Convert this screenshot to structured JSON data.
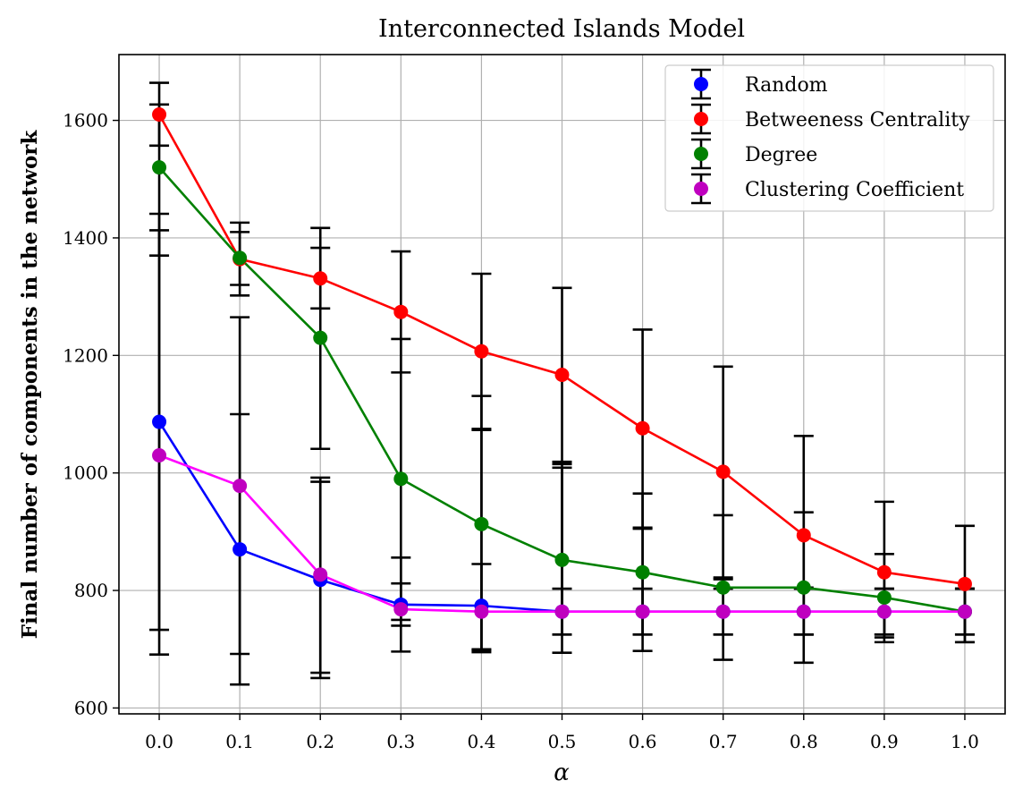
{
  "chart_data": {
    "type": "line",
    "title": "Interconnected Islands Model",
    "xlabel": "α",
    "ylabel": "Final number of components in the network",
    "x": [
      0.0,
      0.1,
      0.2,
      0.3,
      0.4,
      0.5,
      0.6,
      0.7,
      0.8,
      0.9,
      1.0
    ],
    "x_tick_labels": [
      "0.0",
      "0.1",
      "0.2",
      "0.3",
      "0.4",
      "0.5",
      "0.6",
      "0.7",
      "0.8",
      "0.9",
      "1.0"
    ],
    "yticks": [
      600,
      800,
      1000,
      1200,
      1400,
      1600
    ],
    "ylim": [
      590,
      1712
    ],
    "xlim": [
      -0.05,
      1.05
    ],
    "grid": true,
    "legend_position": "top-right",
    "error_bar_color": "#000000",
    "series": [
      {
        "name": "Random",
        "color": "#0000ff",
        "values": [
          1087,
          870,
          818,
          776,
          774,
          764,
          764,
          764,
          764,
          764,
          764
        ],
        "err_low": [
          691,
          640,
          651,
          740,
          695,
          725,
          725,
          725,
          725,
          725,
          725
        ],
        "err_high": [
          1413,
          1100,
          985,
          812,
          845,
          803,
          803,
          803,
          803,
          803,
          803
        ]
      },
      {
        "name": "Betweeness Centrality",
        "color": "#ff0000",
        "values": [
          1610,
          1364,
          1331,
          1274,
          1207,
          1167,
          1076,
          1002,
          894,
          831,
          811
        ],
        "err_low": [
          1557,
          1302,
          1280,
          1171,
          1075,
          1019,
          907,
          822,
          725,
          712,
          712
        ],
        "err_high": [
          1664,
          1426,
          1417,
          1377,
          1339,
          1315,
          1244,
          1181,
          1063,
          951,
          910
        ]
      },
      {
        "name": "Degree",
        "color": "#008000",
        "values": [
          1520,
          1366,
          1230,
          990,
          913,
          852,
          831,
          805,
          805,
          788,
          764
        ],
        "err_low": [
          1370,
          1320,
          1041,
          750,
          700,
          694,
          697,
          682,
          677,
          720,
          712
        ],
        "err_high": [
          1441,
          1410,
          1383,
          1228,
          1131,
          1015,
          965,
          928,
          933,
          862,
          803
        ]
      },
      {
        "name": "Clustering Coefficient",
        "color": "#bf00bf",
        "line_color": "#ff00ff",
        "values": [
          1030,
          978,
          827,
          768,
          764,
          764,
          764,
          764,
          764,
          764,
          764
        ],
        "err_low": [
          733,
          692,
          660,
          696,
          698,
          725,
          725,
          725,
          725,
          725,
          725
        ],
        "err_high": [
          1627,
          1265,
          992,
          856,
          1073,
          1009,
          905,
          819,
          805,
          803,
          803
        ]
      }
    ]
  }
}
